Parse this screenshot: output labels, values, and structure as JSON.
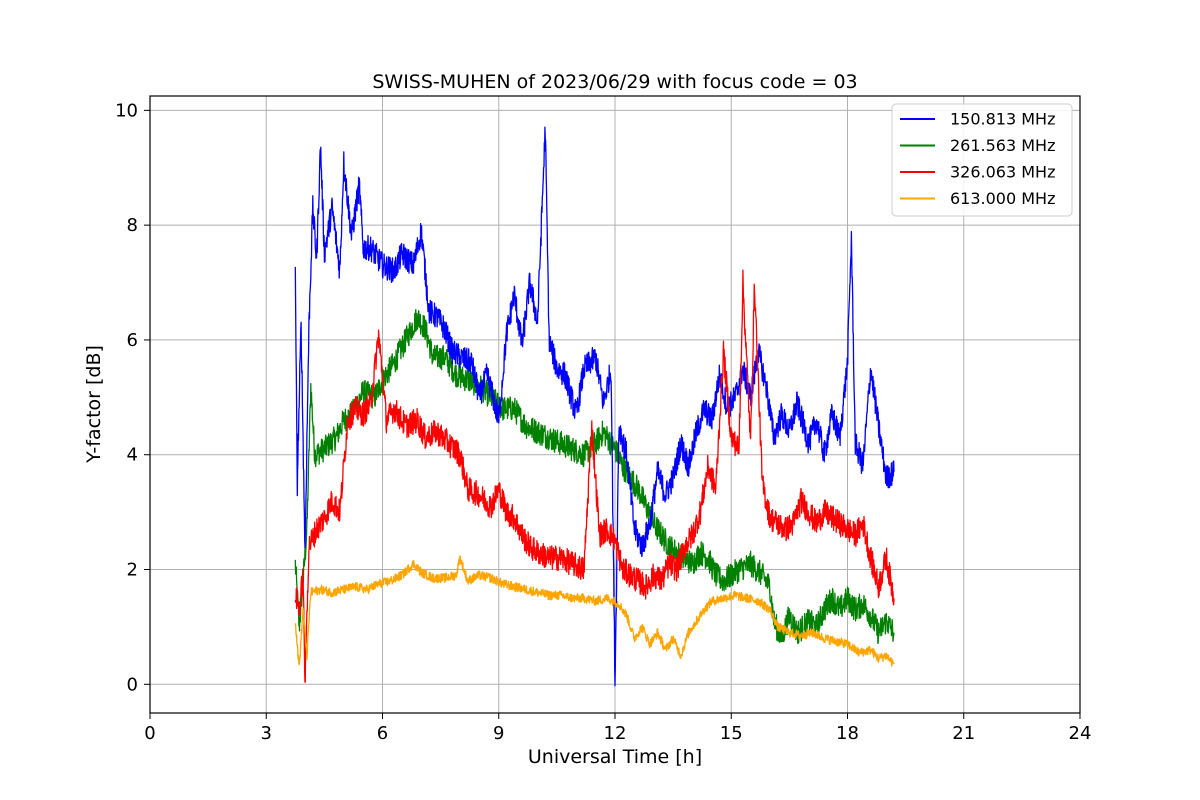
{
  "chart_data": {
    "type": "line",
    "title": "SWISS-MUHEN of 2023/06/29 with focus code = 03",
    "xlabel": "Universal Time [h]",
    "ylabel": "Y-factor [dB]",
    "xlim": [
      0,
      24
    ],
    "ylim": [
      -0.5,
      10.25
    ],
    "x_ticks": [
      0,
      3,
      6,
      9,
      12,
      15,
      18,
      21,
      24
    ],
    "y_ticks": [
      0,
      2,
      4,
      6,
      8,
      10
    ],
    "grid": true,
    "legend_position": "top-right",
    "series": [
      {
        "name": "150.813 MHz",
        "color": "#0000ff",
        "points": [
          [
            3.75,
            7.1
          ],
          [
            3.8,
            3.5
          ],
          [
            3.9,
            6.3
          ],
          [
            4.0,
            2.3
          ],
          [
            4.1,
            6.2
          ],
          [
            4.2,
            8.3
          ],
          [
            4.3,
            7.4
          ],
          [
            4.4,
            9.4
          ],
          [
            4.5,
            7.5
          ],
          [
            4.7,
            8.3
          ],
          [
            4.9,
            7.2
          ],
          [
            5.0,
            9.1
          ],
          [
            5.2,
            7.8
          ],
          [
            5.4,
            8.7
          ],
          [
            5.5,
            7.6
          ],
          [
            5.7,
            7.6
          ],
          [
            6.0,
            7.3
          ],
          [
            6.3,
            7.2
          ],
          [
            6.5,
            7.5
          ],
          [
            6.8,
            7.3
          ],
          [
            7.0,
            7.9
          ],
          [
            7.2,
            6.5
          ],
          [
            7.4,
            6.4
          ],
          [
            7.6,
            6.2
          ],
          [
            7.8,
            5.8
          ],
          [
            8.0,
            5.7
          ],
          [
            8.3,
            5.6
          ],
          [
            8.5,
            5.0
          ],
          [
            8.7,
            5.4
          ],
          [
            9.0,
            4.6
          ],
          [
            9.2,
            6.1
          ],
          [
            9.4,
            6.8
          ],
          [
            9.6,
            5.9
          ],
          [
            9.8,
            7.0
          ],
          [
            10.0,
            6.3
          ],
          [
            10.2,
            9.7
          ],
          [
            10.3,
            6.0
          ],
          [
            10.5,
            5.5
          ],
          [
            10.7,
            5.4
          ],
          [
            11.0,
            4.7
          ],
          [
            11.2,
            5.5
          ],
          [
            11.5,
            5.7
          ],
          [
            11.7,
            4.9
          ],
          [
            11.9,
            5.5
          ],
          [
            12.0,
            0.0
          ],
          [
            12.1,
            4.5
          ],
          [
            12.3,
            4.0
          ],
          [
            12.5,
            2.7
          ],
          [
            12.7,
            2.4
          ],
          [
            12.9,
            2.8
          ],
          [
            13.1,
            3.7
          ],
          [
            13.3,
            3.3
          ],
          [
            13.5,
            3.6
          ],
          [
            13.7,
            4.2
          ],
          [
            13.9,
            3.8
          ],
          [
            14.1,
            4.4
          ],
          [
            14.3,
            4.8
          ],
          [
            14.5,
            4.6
          ],
          [
            14.7,
            5.4
          ],
          [
            14.9,
            4.8
          ],
          [
            15.1,
            5.0
          ],
          [
            15.3,
            5.5
          ],
          [
            15.5,
            5.0
          ],
          [
            15.7,
            5.8
          ],
          [
            15.9,
            5.2
          ],
          [
            16.1,
            4.3
          ],
          [
            16.3,
            4.7
          ],
          [
            16.5,
            4.4
          ],
          [
            16.7,
            4.9
          ],
          [
            17.0,
            4.2
          ],
          [
            17.2,
            4.6
          ],
          [
            17.4,
            4.0
          ],
          [
            17.6,
            4.7
          ],
          [
            17.8,
            4.3
          ],
          [
            18.0,
            5.6
          ],
          [
            18.1,
            7.8
          ],
          [
            18.2,
            4.2
          ],
          [
            18.4,
            3.8
          ],
          [
            18.6,
            5.5
          ],
          [
            18.8,
            4.5
          ],
          [
            19.0,
            3.6
          ],
          [
            19.2,
            3.7
          ]
        ]
      },
      {
        "name": "261.563 MHz",
        "color": "#008000",
        "points": [
          [
            3.75,
            2.1
          ],
          [
            3.85,
            1.0
          ],
          [
            3.95,
            1.8
          ],
          [
            4.05,
            2.7
          ],
          [
            4.15,
            5.2
          ],
          [
            4.25,
            4.0
          ],
          [
            4.5,
            4.1
          ],
          [
            4.8,
            4.3
          ],
          [
            5.0,
            4.6
          ],
          [
            5.2,
            4.7
          ],
          [
            5.5,
            5.1
          ],
          [
            5.8,
            5.0
          ],
          [
            6.0,
            5.3
          ],
          [
            6.3,
            5.6
          ],
          [
            6.6,
            6.0
          ],
          [
            6.9,
            6.4
          ],
          [
            7.1,
            6.2
          ],
          [
            7.3,
            5.7
          ],
          [
            7.6,
            5.7
          ],
          [
            7.9,
            5.4
          ],
          [
            8.2,
            5.3
          ],
          [
            8.5,
            5.2
          ],
          [
            8.8,
            5.0
          ],
          [
            9.1,
            4.8
          ],
          [
            9.4,
            4.8
          ],
          [
            9.7,
            4.5
          ],
          [
            10.0,
            4.4
          ],
          [
            10.3,
            4.3
          ],
          [
            10.6,
            4.2
          ],
          [
            10.9,
            4.1
          ],
          [
            11.2,
            4.0
          ],
          [
            11.5,
            4.2
          ],
          [
            11.7,
            4.4
          ],
          [
            12.0,
            4.1
          ],
          [
            12.2,
            3.8
          ],
          [
            12.4,
            3.6
          ],
          [
            12.6,
            3.4
          ],
          [
            12.8,
            3.1
          ],
          [
            13.0,
            2.8
          ],
          [
            13.2,
            2.6
          ],
          [
            13.4,
            2.4
          ],
          [
            13.6,
            2.3
          ],
          [
            13.8,
            2.2
          ],
          [
            14.0,
            2.1
          ],
          [
            14.2,
            2.3
          ],
          [
            14.4,
            2.2
          ],
          [
            14.6,
            1.9
          ],
          [
            14.8,
            1.8
          ],
          [
            15.0,
            1.9
          ],
          [
            15.2,
            2.0
          ],
          [
            15.5,
            2.1
          ],
          [
            15.8,
            1.9
          ],
          [
            16.0,
            1.7
          ],
          [
            16.1,
            1.1
          ],
          [
            16.3,
            0.8
          ],
          [
            16.5,
            1.2
          ],
          [
            16.7,
            0.9
          ],
          [
            17.0,
            1.1
          ],
          [
            17.2,
            1.0
          ],
          [
            17.4,
            1.3
          ],
          [
            17.6,
            1.5
          ],
          [
            17.8,
            1.3
          ],
          [
            18.0,
            1.5
          ],
          [
            18.2,
            1.3
          ],
          [
            18.4,
            1.4
          ],
          [
            18.6,
            1.2
          ],
          [
            18.8,
            0.9
          ],
          [
            19.0,
            1.1
          ],
          [
            19.2,
            0.9
          ]
        ]
      },
      {
        "name": "326.063 MHz",
        "color": "#ff0000",
        "points": [
          [
            3.75,
            1.6
          ],
          [
            3.85,
            1.3
          ],
          [
            3.95,
            1.9
          ],
          [
            4.0,
            0.0
          ],
          [
            4.1,
            2.4
          ],
          [
            4.3,
            2.7
          ],
          [
            4.5,
            2.9
          ],
          [
            4.7,
            3.2
          ],
          [
            4.9,
            3.0
          ],
          [
            5.1,
            4.6
          ],
          [
            5.3,
            4.8
          ],
          [
            5.5,
            4.7
          ],
          [
            5.7,
            4.9
          ],
          [
            5.9,
            6.1
          ],
          [
            6.1,
            4.6
          ],
          [
            6.3,
            4.8
          ],
          [
            6.6,
            4.5
          ],
          [
            6.9,
            4.6
          ],
          [
            7.1,
            4.3
          ],
          [
            7.4,
            4.4
          ],
          [
            7.7,
            4.2
          ],
          [
            8.0,
            4.0
          ],
          [
            8.2,
            3.4
          ],
          [
            8.5,
            3.3
          ],
          [
            8.8,
            3.1
          ],
          [
            9.0,
            3.4
          ],
          [
            9.2,
            3.0
          ],
          [
            9.4,
            2.9
          ],
          [
            9.6,
            2.6
          ],
          [
            9.8,
            2.4
          ],
          [
            10.0,
            2.3
          ],
          [
            10.3,
            2.2
          ],
          [
            10.6,
            2.2
          ],
          [
            10.9,
            2.1
          ],
          [
            11.2,
            2.0
          ],
          [
            11.4,
            4.5
          ],
          [
            11.6,
            2.6
          ],
          [
            11.8,
            2.7
          ],
          [
            12.0,
            2.5
          ],
          [
            12.2,
            2.0
          ],
          [
            12.4,
            1.9
          ],
          [
            12.6,
            1.8
          ],
          [
            12.8,
            1.7
          ],
          [
            13.0,
            1.9
          ],
          [
            13.2,
            1.8
          ],
          [
            13.4,
            2.1
          ],
          [
            13.6,
            2.0
          ],
          [
            13.8,
            2.4
          ],
          [
            14.0,
            2.6
          ],
          [
            14.2,
            3.0
          ],
          [
            14.4,
            3.8
          ],
          [
            14.6,
            3.4
          ],
          [
            14.8,
            5.8
          ],
          [
            15.0,
            4.3
          ],
          [
            15.2,
            4.1
          ],
          [
            15.3,
            7.0
          ],
          [
            15.5,
            4.2
          ],
          [
            15.6,
            7.0
          ],
          [
            15.8,
            3.5
          ],
          [
            16.0,
            2.9
          ],
          [
            16.2,
            2.8
          ],
          [
            16.4,
            2.7
          ],
          [
            16.6,
            2.8
          ],
          [
            16.8,
            3.2
          ],
          [
            17.0,
            3.0
          ],
          [
            17.2,
            2.8
          ],
          [
            17.4,
            3.0
          ],
          [
            17.6,
            2.9
          ],
          [
            17.8,
            2.8
          ],
          [
            18.0,
            2.7
          ],
          [
            18.2,
            2.6
          ],
          [
            18.4,
            2.8
          ],
          [
            18.6,
            2.2
          ],
          [
            18.8,
            1.7
          ],
          [
            19.0,
            2.2
          ],
          [
            19.2,
            1.5
          ]
        ]
      },
      {
        "name": "613.000 MHz",
        "color": "#ffa500",
        "points": [
          [
            3.75,
            1.1
          ],
          [
            3.85,
            0.3
          ],
          [
            3.95,
            1.3
          ],
          [
            4.05,
            0.5
          ],
          [
            4.15,
            1.6
          ],
          [
            4.4,
            1.65
          ],
          [
            4.7,
            1.6
          ],
          [
            5.0,
            1.65
          ],
          [
            5.3,
            1.7
          ],
          [
            5.6,
            1.65
          ],
          [
            5.9,
            1.75
          ],
          [
            6.2,
            1.8
          ],
          [
            6.5,
            1.9
          ],
          [
            6.8,
            2.1
          ],
          [
            7.0,
            1.95
          ],
          [
            7.3,
            1.85
          ],
          [
            7.6,
            1.85
          ],
          [
            7.9,
            1.9
          ],
          [
            8.0,
            2.2
          ],
          [
            8.2,
            1.8
          ],
          [
            8.5,
            1.9
          ],
          [
            8.8,
            1.85
          ],
          [
            9.1,
            1.75
          ],
          [
            9.4,
            1.7
          ],
          [
            9.7,
            1.65
          ],
          [
            10.0,
            1.6
          ],
          [
            10.3,
            1.55
          ],
          [
            10.6,
            1.55
          ],
          [
            10.9,
            1.5
          ],
          [
            11.2,
            1.5
          ],
          [
            11.5,
            1.45
          ],
          [
            11.8,
            1.5
          ],
          [
            12.1,
            1.4
          ],
          [
            12.3,
            1.2
          ],
          [
            12.5,
            0.8
          ],
          [
            12.7,
            1.0
          ],
          [
            12.9,
            0.7
          ],
          [
            13.1,
            0.9
          ],
          [
            13.3,
            0.6
          ],
          [
            13.5,
            0.8
          ],
          [
            13.7,
            0.5
          ],
          [
            13.9,
            0.9
          ],
          [
            14.1,
            1.1
          ],
          [
            14.3,
            1.3
          ],
          [
            14.5,
            1.45
          ],
          [
            14.8,
            1.5
          ],
          [
            15.1,
            1.55
          ],
          [
            15.4,
            1.5
          ],
          [
            15.7,
            1.45
          ],
          [
            16.0,
            1.3
          ],
          [
            16.2,
            1.0
          ],
          [
            16.5,
            0.9
          ],
          [
            16.8,
            0.85
          ],
          [
            17.1,
            0.9
          ],
          [
            17.4,
            0.8
          ],
          [
            17.7,
            0.75
          ],
          [
            18.0,
            0.7
          ],
          [
            18.3,
            0.55
          ],
          [
            18.6,
            0.6
          ],
          [
            18.8,
            0.45
          ],
          [
            19.0,
            0.5
          ],
          [
            19.2,
            0.35
          ]
        ]
      }
    ]
  }
}
